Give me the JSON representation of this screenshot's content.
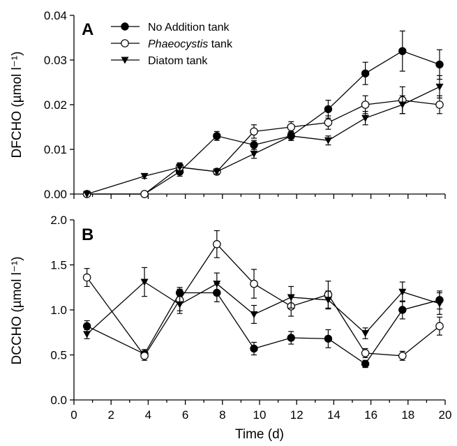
{
  "chart_data": [
    {
      "type": "line",
      "panel": "A",
      "ylabel": "DFCHO (µmol l⁻¹)",
      "xlabel": "",
      "xlim": [
        0,
        20
      ],
      "ylim": [
        0,
        0.04
      ],
      "yticks": [
        0.0,
        0.01,
        0.02,
        0.03,
        0.04
      ],
      "ytick_labels": [
        "0.00",
        "0.01",
        "0.02",
        "0.03",
        "0.04"
      ],
      "legend": "top-left",
      "series": [
        {
          "name_main": "No Addition tank",
          "name_suffix": "",
          "marker": "filled-circle",
          "x": [
            0.7,
            3.8,
            5.7,
            7.7,
            9.7,
            11.7,
            13.7,
            15.7,
            17.7,
            19.7
          ],
          "y": [
            0.0,
            0.0,
            0.005,
            0.013,
            0.011,
            0.013,
            0.019,
            0.027,
            0.032,
            0.029
          ],
          "err": [
            0,
            0,
            0.001,
            0.001,
            0.001,
            0.001,
            0.002,
            0.0025,
            0.0045,
            0.0033
          ]
        },
        {
          "name_main": "Phaeocystis",
          "name_suffix": " tank",
          "marker": "open-circle",
          "x": [
            0.7,
            3.8,
            5.7,
            7.7,
            9.7,
            11.7,
            13.7,
            15.7,
            17.7,
            19.7
          ],
          "y": [
            0.0,
            0.0,
            0.006,
            0.005,
            0.014,
            0.015,
            0.016,
            0.02,
            0.021,
            0.02
          ],
          "err": [
            0,
            0,
            0.001,
            0.0005,
            0.0015,
            0.0012,
            0.0015,
            0.002,
            0.003,
            0.002
          ]
        },
        {
          "name_main": "Diatom tank",
          "name_suffix": "",
          "marker": "filled-triangle-down",
          "x": [
            0.7,
            3.8,
            5.7,
            7.7,
            9.7,
            11.7,
            13.7,
            15.7,
            17.7,
            19.7
          ],
          "y": [
            0.0,
            0.004,
            0.006,
            0.005,
            0.009,
            0.013,
            0.012,
            0.017,
            0.02,
            0.024
          ],
          "err": [
            0,
            0.0005,
            0.0008,
            0.0005,
            0.001,
            0.001,
            0.001,
            0.0015,
            0.002,
            0.0025
          ]
        }
      ]
    },
    {
      "type": "line",
      "panel": "B",
      "ylabel": "DCCHO (µmol l⁻¹)",
      "xlabel": "Time (d)",
      "xlim": [
        0,
        20
      ],
      "ylim": [
        0,
        2.0
      ],
      "yticks": [
        0.0,
        0.5,
        1.0,
        1.5,
        2.0
      ],
      "ytick_labels": [
        "0.0",
        "0.5",
        "1.0",
        "1.5",
        "2.0"
      ],
      "xticks": [
        0,
        2,
        4,
        6,
        8,
        10,
        12,
        14,
        16,
        18,
        20
      ],
      "xtick_labels": [
        "0",
        "2",
        "4",
        "6",
        "8",
        "10",
        "12",
        "14",
        "16",
        "18",
        "20"
      ],
      "series": [
        {
          "name_main": "No Addition tank",
          "marker": "filled-circle",
          "x": [
            0.7,
            3.8,
            5.7,
            7.7,
            9.7,
            11.7,
            13.7,
            15.7,
            17.7,
            19.7
          ],
          "y": [
            0.82,
            0.51,
            1.19,
            1.19,
            0.57,
            0.69,
            0.68,
            0.4,
            1.0,
            1.11
          ],
          "err": [
            0.06,
            0.05,
            0.06,
            0.1,
            0.07,
            0.07,
            0.1,
            0.04,
            0.1,
            0.1
          ]
        },
        {
          "name_main": "Phaeocystis tank",
          "marker": "open-circle",
          "x": [
            0.7,
            3.8,
            5.7,
            7.7,
            9.7,
            11.7,
            13.7,
            15.7,
            17.7,
            19.7
          ],
          "y": [
            1.36,
            0.49,
            1.11,
            1.73,
            1.29,
            1.04,
            1.17,
            0.52,
            0.49,
            0.82
          ],
          "err": [
            0.1,
            0.05,
            0.12,
            0.15,
            0.16,
            0.11,
            0.15,
            0.05,
            0.05,
            0.1
          ]
        },
        {
          "name_main": "Diatom tank",
          "marker": "filled-triangle-down",
          "x": [
            0.7,
            3.8,
            5.7,
            7.7,
            9.7,
            11.7,
            13.7,
            15.7,
            17.7,
            19.7
          ],
          "y": [
            0.73,
            1.31,
            1.06,
            1.29,
            0.95,
            1.14,
            1.11,
            0.74,
            1.2,
            1.07
          ],
          "err": [
            0.05,
            0.16,
            0.1,
            0.12,
            0.1,
            0.12,
            0.1,
            0.06,
            0.11,
            0.12
          ]
        }
      ]
    }
  ]
}
